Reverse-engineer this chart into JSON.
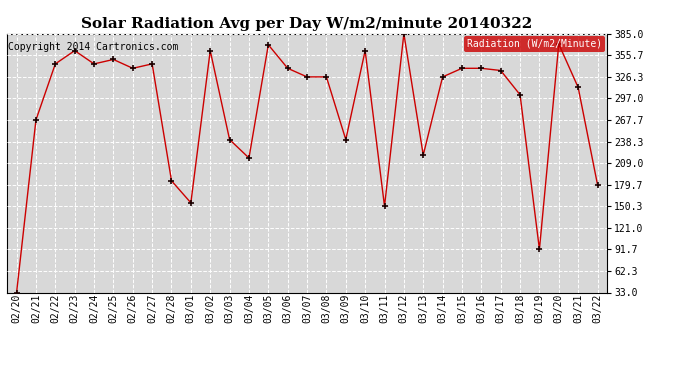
{
  "title": "Solar Radiation Avg per Day W/m2/minute 20140322",
  "copyright": "Copyright 2014 Cartronics.com",
  "legend_label": "Radiation (W/m2/Minute)",
  "dates": [
    "02/20",
    "02/21",
    "02/22",
    "02/23",
    "02/24",
    "02/25",
    "02/26",
    "02/27",
    "02/28",
    "03/01",
    "03/02",
    "03/03",
    "03/04",
    "03/05",
    "03/06",
    "03/07",
    "03/08",
    "03/09",
    "03/10",
    "03/11",
    "03/12",
    "03/13",
    "03/14",
    "03/15",
    "03/16",
    "03/17",
    "03/18",
    "03/19",
    "03/20",
    "03/21",
    "03/22"
  ],
  "values": [
    33.0,
    267.7,
    344.0,
    362.0,
    344.0,
    350.0,
    338.0,
    344.0,
    185.0,
    155.0,
    362.0,
    241.0,
    216.0,
    370.0,
    338.0,
    326.3,
    326.3,
    241.0,
    362.0,
    150.3,
    385.0,
    220.0,
    326.3,
    338.0,
    338.0,
    335.0,
    302.0,
    91.7,
    371.0,
    312.0,
    179.7
  ],
  "yticks": [
    33.0,
    62.3,
    91.7,
    121.0,
    150.3,
    179.7,
    209.0,
    238.3,
    267.7,
    297.0,
    326.3,
    355.7,
    385.0
  ],
  "line_color": "#cc0000",
  "marker_color": "#1a0000",
  "bg_color": "#ffffff",
  "plot_bg_color": "#d8d8d8",
  "grid_color": "#ffffff",
  "title_fontsize": 11,
  "copyright_fontsize": 7,
  "tick_fontsize": 7,
  "legend_bg_color": "#cc0000",
  "legend_text_color": "#ffffff"
}
